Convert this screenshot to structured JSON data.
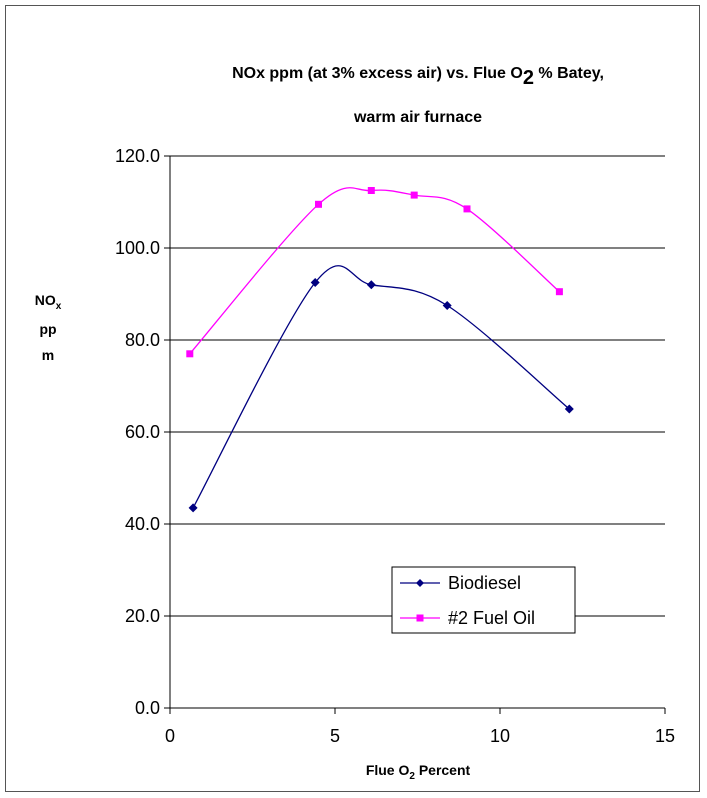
{
  "chart_data": {
    "type": "line",
    "title_line1_pre": "NOx ppm (at 3% excess air) vs. Flue O",
    "title_line1_sub": "2",
    "title_line1_post": " % Batey,",
    "title_line2": "warm air furnace",
    "xlabel_pre": "Flue O",
    "xlabel_sub": "2",
    "xlabel_post": " Percent",
    "ylabel_line1_pre": "NO",
    "ylabel_line1_sub": "x",
    "ylabel_line2": "pp",
    "ylabel_line3": "m",
    "xlim": [
      0,
      15
    ],
    "ylim": [
      0,
      120
    ],
    "x_ticks": [
      0,
      5,
      10,
      15
    ],
    "x_tick_labels": [
      "0",
      "5",
      "10",
      "15"
    ],
    "y_ticks": [
      0,
      20,
      40,
      60,
      80,
      100,
      120
    ],
    "y_tick_labels": [
      "0.0",
      "20.0",
      "40.0",
      "60.0",
      "80.0",
      "100.0",
      "120.0"
    ],
    "grid": "horizontal",
    "legend_position": "bottom-right",
    "series": [
      {
        "name": "Biodiesel",
        "color": "#000080",
        "marker": "diamond",
        "x": [
          0.7,
          4.4,
          6.1,
          8.4,
          12.1
        ],
        "y": [
          43.5,
          92.5,
          92.0,
          87.5,
          65.0
        ]
      },
      {
        "name": "#2 Fuel Oil",
        "color": "#ff00ff",
        "marker": "square",
        "x": [
          0.6,
          4.5,
          6.1,
          7.4,
          9.0,
          11.8
        ],
        "y": [
          77.0,
          109.5,
          112.5,
          111.5,
          108.5,
          90.5
        ]
      }
    ]
  }
}
